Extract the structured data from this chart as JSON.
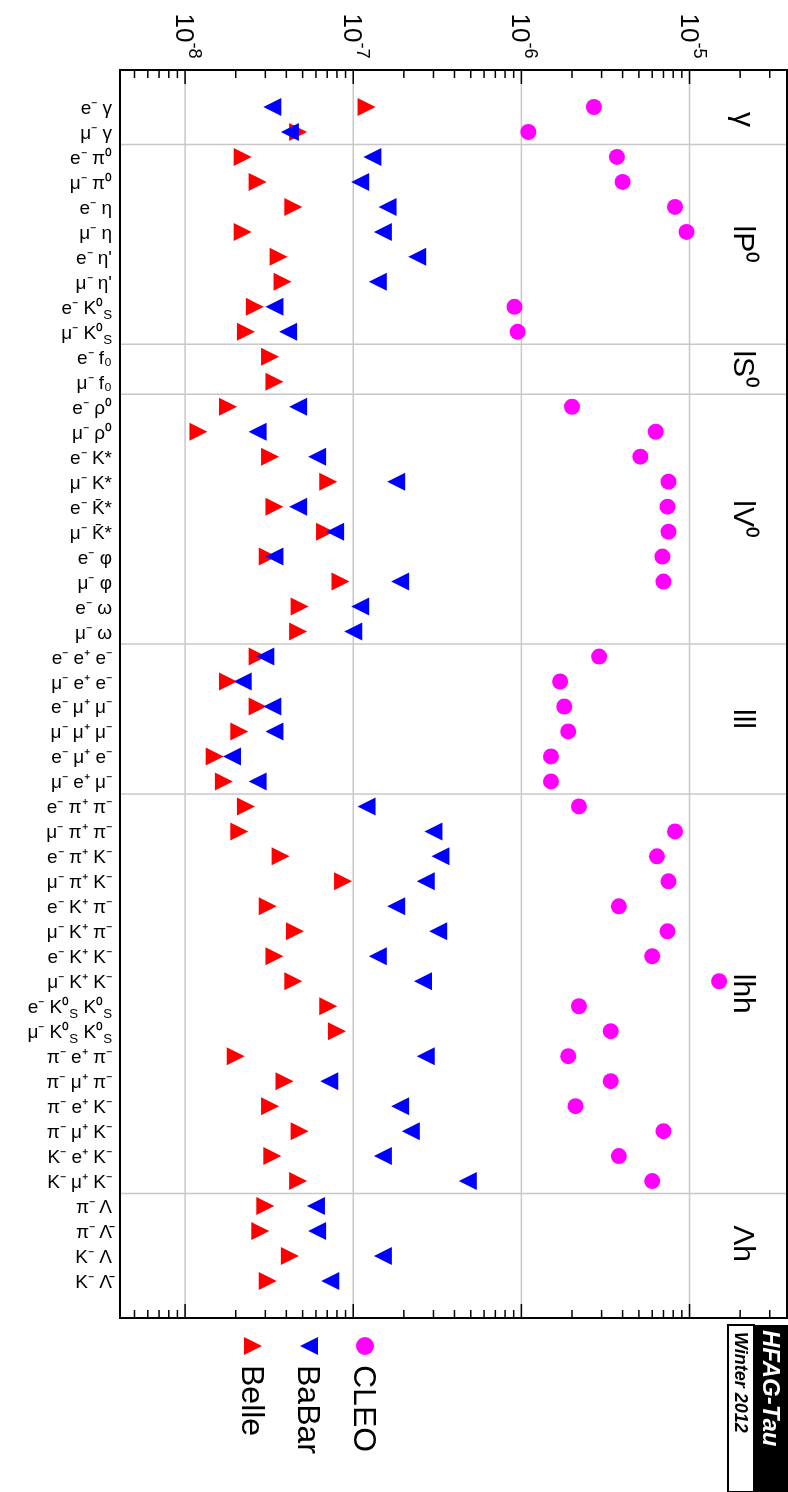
{
  "chart_data": {
    "type": "scatter",
    "orientation": "horizontal",
    "log": "x",
    "grid": "x",
    "legend": "bottom",
    "categories": [
      "e⁻ γ",
      "μ⁻ γ",
      "e⁻ π⁰",
      "μ⁻ π⁰",
      "e⁻ η",
      "μ⁻ η",
      "e⁻ η'",
      "μ⁻ η'",
      "e⁻ K⁰$_{S}$",
      "μ⁻ K⁰$_{S}$",
      "e⁻ f₀",
      "μ⁻ f₀",
      "e⁻ ρ⁰",
      "μ⁻ ρ⁰",
      "e⁻ K*",
      "μ⁻ K*",
      "e⁻ K̄*",
      "μ⁻ K̄*",
      "e⁻ φ",
      "μ⁻ φ",
      "e⁻ ω",
      "μ⁻ ω",
      "e⁻ e⁺ e⁻",
      "μ⁻ e⁺ e⁻",
      "e⁻ μ⁺ μ⁻",
      "μ⁻ μ⁺ μ⁻",
      "e⁻ μ⁺ e⁻",
      "μ⁻ e⁺ μ⁻",
      "e⁻ π⁺ π⁻",
      "μ⁻ π⁺ π⁻",
      "e⁻ π⁺ K⁻",
      "μ⁻ π⁺ K⁻",
      "e⁻ K⁺ π⁻",
      "μ⁻ K⁺ π⁻",
      "e⁻ K⁺ K⁻",
      "μ⁻ K⁺ K⁻",
      "e⁻ K⁰$_{S}$ K⁰$_{S}$",
      "μ⁻ K⁰$_{S}$ K⁰$_{S}$",
      "π⁻ e⁺ π⁻",
      "π⁻ μ⁺ π⁻",
      "π⁻ e⁺ K⁻",
      "π⁻ μ⁺ K⁻",
      "K⁻ e⁺ K⁻",
      "K⁻ μ⁺ K⁻",
      "π⁻ Λ",
      "π⁻ Λ̄",
      "K⁻ Λ",
      "K⁻ Λ̄"
    ],
    "xlim": [
      4.1e-09,
      3.8e-05
    ],
    "xticks": [
      {
        "value": 5e-09,
        "label": null
      },
      {
        "value": 6e-09,
        "label": null
      },
      {
        "value": 7e-09,
        "label": null
      },
      {
        "value": 8e-09,
        "label": null
      },
      {
        "value": 9e-09,
        "label": null
      },
      {
        "value": 1e-08,
        "label": "10$^{-8}$"
      },
      {
        "value": 2e-08,
        "label": null
      },
      {
        "value": 3e-08,
        "label": null
      },
      {
        "value": 4e-08,
        "label": null
      },
      {
        "value": 5e-08,
        "label": null
      },
      {
        "value": 6e-08,
        "label": null
      },
      {
        "value": 7e-08,
        "label": null
      },
      {
        "value": 8e-08,
        "label": null
      },
      {
        "value": 9e-08,
        "label": null
      },
      {
        "value": 1e-07,
        "label": "10$^{-7}$"
      },
      {
        "value": 2e-07,
        "label": null
      },
      {
        "value": 3e-07,
        "label": null
      },
      {
        "value": 4e-07,
        "label": null
      },
      {
        "value": 5e-07,
        "label": null
      },
      {
        "value": 6e-07,
        "label": null
      },
      {
        "value": 7e-07,
        "label": null
      },
      {
        "value": 8e-07,
        "label": null
      },
      {
        "value": 9e-07,
        "label": null
      },
      {
        "value": 1e-06,
        "label": "10$^{-6}$"
      },
      {
        "value": 2e-06,
        "label": null
      },
      {
        "value": 3e-06,
        "label": null
      },
      {
        "value": 4e-06,
        "label": null
      },
      {
        "value": 5e-06,
        "label": null
      },
      {
        "value": 6e-06,
        "label": null
      },
      {
        "value": 7e-06,
        "label": null
      },
      {
        "value": 8e-06,
        "label": null
      },
      {
        "value": 9e-06,
        "label": null
      },
      {
        "value": 1e-05,
        "label": "10$^{-5}$"
      },
      {
        "value": 2e-05,
        "label": null
      },
      {
        "value": 3e-05,
        "label": null
      }
    ],
    "annotations": [
      "HFAG-Tau",
      "Winter 2012",
      "γ",
      "lP⁰",
      "lS⁰",
      "lV⁰",
      "lll",
      "lhh",
      "Λh"
    ],
    "series": [
      {
        "name": "CLEO",
        "color": "#ff00ff",
        "marker": "circle",
        "values": [
          2.7e-06,
          1.1e-06,
          3.7e-06,
          4e-06,
          8.2e-06,
          9.6e-06,
          null,
          null,
          9.1e-07,
          9.5e-07,
          null,
          null,
          2e-06,
          6.3e-06,
          5.1e-06,
          7.5e-06,
          7.4e-06,
          7.5e-06,
          6.9e-06,
          7e-06,
          null,
          null,
          2.9e-06,
          1.7e-06,
          1.8e-06,
          1.9e-06,
          1.5e-06,
          1.5e-06,
          2.2e-06,
          8.2e-06,
          6.4e-06,
          7.5e-06,
          3.8e-06,
          7.4e-06,
          6e-06,
          1.5e-05,
          2.2e-06,
          3.4e-06,
          1.9e-06,
          3.4e-06,
          2.1e-06,
          7e-06,
          3.8e-06,
          6e-06,
          null,
          null,
          null,
          null
        ]
      },
      {
        "name": "BaBar",
        "color": "#0000ff",
        "marker": "triangle",
        "values": [
          3.3e-08,
          4.2e-08,
          1.3e-07,
          1.1e-07,
          1.6e-07,
          1.5e-07,
          2.4e-07,
          1.4e-07,
          3.4e-08,
          4.1e-08,
          null,
          null,
          4.7e-08,
          2.7e-08,
          6.1e-08,
          1.8e-07,
          4.7e-08,
          7.8e-08,
          3.4e-08,
          1.9e-07,
          1.1e-07,
          1e-07,
          3e-08,
          2.2e-08,
          3.3e-08,
          3.4e-08,
          1.9e-08,
          2.7e-08,
          1.2e-07,
          3e-07,
          3.3e-07,
          2.7e-07,
          1.8e-07,
          3.2e-07,
          1.4e-07,
          2.6e-07,
          null,
          null,
          2.7e-07,
          7.2e-08,
          1.9e-07,
          2.2e-07,
          1.5e-07,
          4.8e-07,
          6e-08,
          6.1e-08,
          1.5e-07,
          7.3e-08
        ]
      },
      {
        "name": "Belle",
        "color": "#ff0000",
        "marker": "triangle",
        "values": [
          1.2e-07,
          4.7e-08,
          2.2e-08,
          2.7e-08,
          4.4e-08,
          2.2e-08,
          3.6e-08,
          3.8e-08,
          2.6e-08,
          2.3e-08,
          3.2e-08,
          3.4e-08,
          1.8e-08,
          1.2e-08,
          3.2e-08,
          7.1e-08,
          3.4e-08,
          6.8e-08,
          3.1e-08,
          8.4e-08,
          4.8e-08,
          4.7e-08,
          2.7e-08,
          1.8e-08,
          2.7e-08,
          2.1e-08,
          1.5e-08,
          1.7e-08,
          2.3e-08,
          2.1e-08,
          3.7e-08,
          8.7e-08,
          3.1e-08,
          4.5e-08,
          3.4e-08,
          4.4e-08,
          7.1e-08,
          8e-08,
          2e-08,
          3.9e-08,
          3.2e-08,
          4.8e-08,
          3.3e-08,
          4.7e-08,
          3e-08,
          2.8e-08,
          4.2e-08,
          3.1e-08
        ]
      }
    ]
  }
}
